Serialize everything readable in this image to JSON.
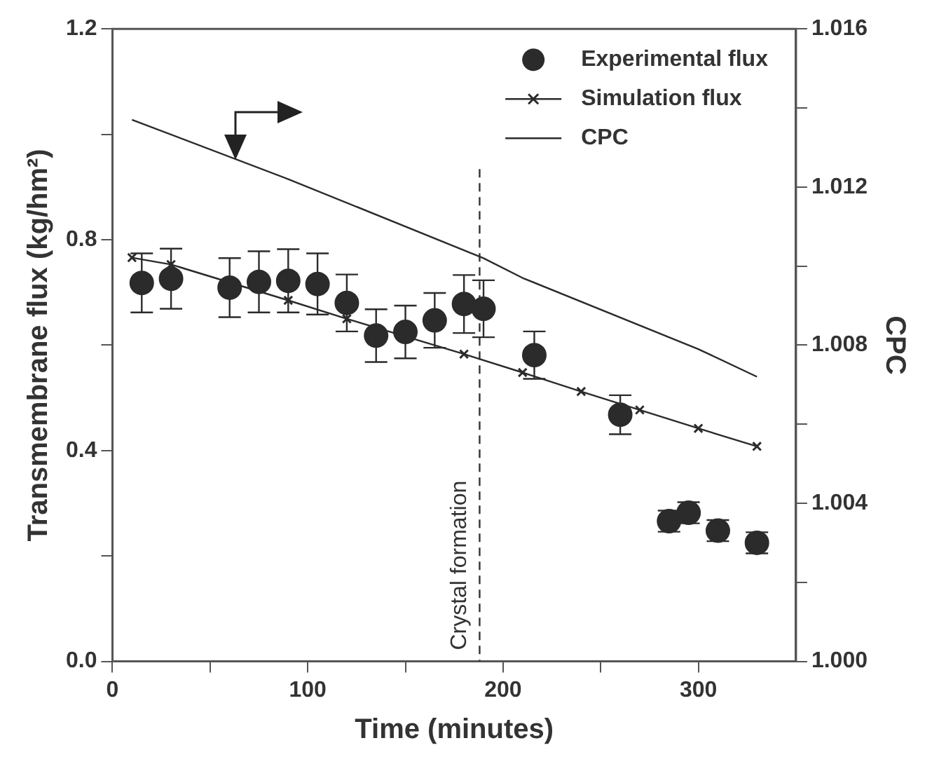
{
  "chart_data": {
    "type": "scatter",
    "xlabel": "Time (minutes)",
    "ylabel": "Transmembrane flux (kg/hm²)",
    "y2label": "CPC",
    "xlim": [
      0,
      350
    ],
    "xticks": [
      0,
      {
        "value": 50,
        "label": null
      },
      100,
      {
        "value": 150,
        "label": null
      },
      200,
      {
        "value": 250,
        "label": null
      },
      300
    ],
    "ylim": [
      0,
      1.2
    ],
    "yticks": [
      {
        "value": 0,
        "label": "0.0"
      },
      {
        "value": 0.2,
        "label": null
      },
      {
        "value": 0.4,
        "label": "0.4"
      },
      {
        "value": 0.6,
        "label": null
      },
      {
        "value": 0.8,
        "label": "0.8"
      },
      {
        "value": 1.0,
        "label": null
      },
      {
        "value": 1.2,
        "label": "1.2"
      }
    ],
    "y2lim": [
      1.0,
      1.016
    ],
    "y2ticks": [
      {
        "value": 1.0,
        "label": "1.000"
      },
      {
        "value": 1.002,
        "label": null
      },
      {
        "value": 1.004,
        "label": "1.004"
      },
      {
        "value": 1.006,
        "label": null
      },
      {
        "value": 1.008,
        "label": "1.008"
      },
      {
        "value": 1.01,
        "label": null
      },
      {
        "value": 1.012,
        "label": "1.012"
      },
      {
        "value": 1.014,
        "label": null
      },
      {
        "value": 1.016,
        "label": "1.016"
      }
    ],
    "grid": false,
    "legend": "top right",
    "ref_lines": [
      {
        "axis": "x",
        "value": 188,
        "label": "Crystal formation",
        "line_style": "dashed",
        "color": "#333333"
      }
    ],
    "series": [
      {
        "name": "Experimental flux",
        "type": "scatter",
        "marker": "circle",
        "color": "#2b2b2b",
        "x": [
          15,
          30,
          60,
          75,
          90,
          105,
          120,
          135,
          150,
          165,
          180,
          190,
          216,
          260,
          285,
          295,
          310,
          330
        ],
        "values": [
          0.718,
          0.726,
          0.709,
          0.72,
          0.722,
          0.716,
          0.68,
          0.618,
          0.625,
          0.647,
          0.678,
          0.669,
          0.581,
          0.468,
          0.266,
          0.282,
          0.248,
          0.225
        ],
        "errors": [
          0.056,
          0.057,
          0.056,
          0.058,
          0.06,
          0.058,
          0.054,
          0.05,
          0.05,
          0.052,
          0.055,
          0.054,
          0.045,
          0.037,
          0.02,
          0.02,
          0.02,
          0.02
        ]
      },
      {
        "name": "Simulation flux",
        "type": "line",
        "marker": "cross",
        "line_style": "solid",
        "color": "#2b2b2b",
        "x": [
          10,
          30,
          90,
          120,
          180,
          210,
          240,
          270,
          300,
          330
        ],
        "values": [
          0.766,
          0.753,
          0.685,
          0.65,
          0.583,
          0.548,
          0.512,
          0.477,
          0.442,
          0.408
        ]
      },
      {
        "name": "CPC",
        "type": "line",
        "marker": "none",
        "line_style": "solid",
        "axis": "y2",
        "color": "#2b2b2b",
        "x": [
          10,
          90,
          190,
          210,
          300,
          330
        ],
        "values": [
          1.0137,
          1.0122,
          1.0102,
          1.0097,
          1.0079,
          1.0072
        ]
      }
    ]
  }
}
